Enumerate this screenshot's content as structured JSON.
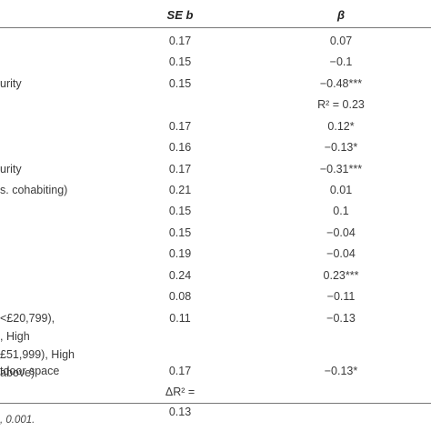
{
  "header": {
    "seb": "SE b",
    "beta": "β"
  },
  "rows": [
    {
      "label": "",
      "seb": "0.17",
      "beta": "0.07"
    },
    {
      "label": "",
      "seb": "0.15",
      "beta": "−0.1"
    },
    {
      "label": "urity",
      "seb": "0.15",
      "beta": "−0.48***"
    },
    {
      "label": "",
      "seb": "",
      "beta": "R² = 0.23"
    },
    {
      "label": "",
      "seb": "0.17",
      "beta": "0.12*"
    },
    {
      "label": "",
      "seb": "0.16",
      "beta": "−0.13*"
    },
    {
      "label": "urity",
      "seb": "0.17",
      "beta": "−0.31***"
    },
    {
      "label": "s. cohabiting)",
      "seb": "0.21",
      "beta": "0.01"
    },
    {
      "label": "",
      "seb": "0.15",
      "beta": "0.1"
    },
    {
      "label": "",
      "seb": "0.15",
      "beta": "−0.04"
    },
    {
      "label": "",
      "seb": "0.19",
      "beta": "−0.04"
    },
    {
      "label": "",
      "seb": "0.24",
      "beta": "0.23***"
    },
    {
      "label": "",
      "seb": "0.08",
      "beta": "−0.11"
    },
    {
      "label": "<£20,799),\n, High\n£51,999), High\nabove)",
      "seb": "0.11",
      "beta": "−0.13"
    },
    {
      "label": "tdoor space",
      "seb": "0.17",
      "beta": "−0.13*"
    },
    {
      "label": "",
      "seb": "ΔR² = 0.13",
      "beta": ""
    }
  ],
  "note": ", 0.001."
}
